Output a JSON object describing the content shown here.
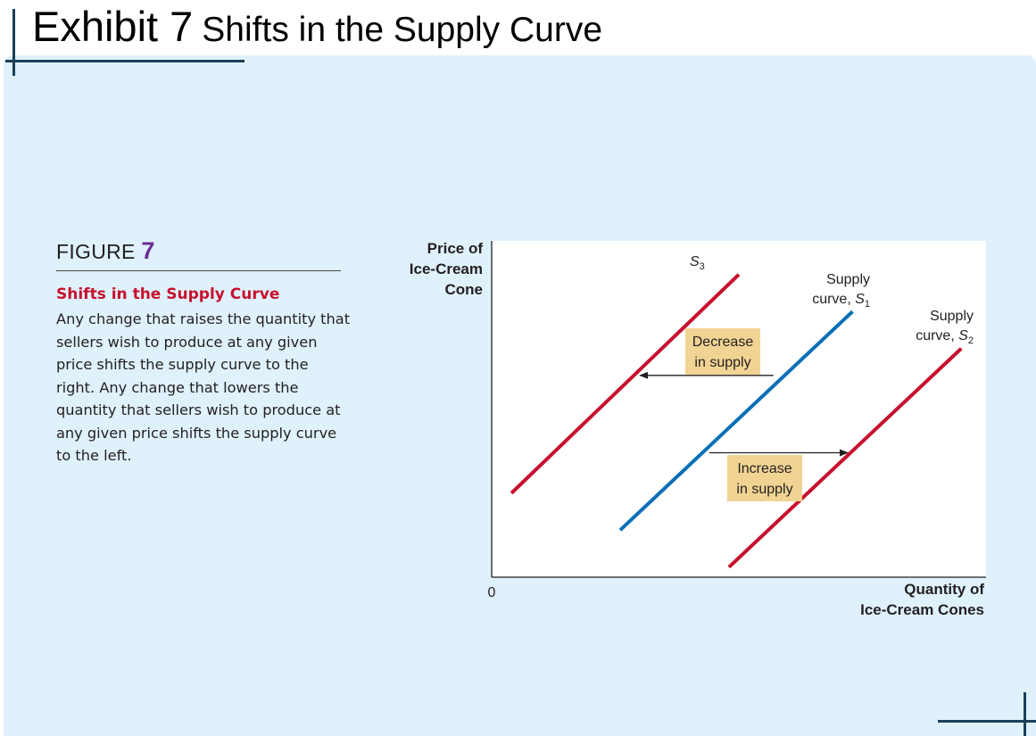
{
  "header": {
    "exhibit": "Exhibit 7",
    "title": "Shifts in the Supply Curve"
  },
  "figure": {
    "label_word": "FIGURE",
    "label_number": "7",
    "caption_title": "Shifts in the Supply Curve",
    "caption_body": "Any change that raises the quantity that sellers wish to produce at any given price shifts the supply curve to the right. Any change that lowers the quantity that sellers wish to produce at any given price shifts the supply curve to the left."
  },
  "colors": {
    "panel": "#dff1fb",
    "curve_red": "#c8102e",
    "curve_blue": "#0a6fb7",
    "box_fill": "#f1d493",
    "accent_purple": "#6b2c91"
  },
  "chart_data": {
    "type": "line",
    "ylabel": [
      "Price of",
      "Ice-Cream",
      "Cone"
    ],
    "xlabel": [
      "Quantity of",
      "Ice-Cream Cones"
    ],
    "origin_label": "0",
    "grid": false,
    "xlim": [
      0,
      100
    ],
    "ylim": [
      0,
      100
    ],
    "series": [
      {
        "key": "s3",
        "label_lines": [
          "Supply curve, S",
          "3"
        ],
        "color": "#c8102e",
        "x": [
          4,
          50
        ],
        "y": [
          25,
          90
        ]
      },
      {
        "key": "s1",
        "label_lines": [
          "Supply",
          "curve, S",
          "1"
        ],
        "color": "#0a6fb7",
        "x": [
          26,
          73
        ],
        "y": [
          14,
          79
        ]
      },
      {
        "key": "s2",
        "label_lines": [
          "Supply",
          "curve, S",
          "2"
        ],
        "color": "#c8102e",
        "x": [
          48,
          95
        ],
        "y": [
          3,
          68
        ]
      }
    ],
    "annotations": [
      {
        "key": "decrease",
        "lines": [
          "Decrease",
          "in supply"
        ],
        "arrow": {
          "from_x": 57,
          "to_x": 30,
          "y": 60
        }
      },
      {
        "key": "increase",
        "lines": [
          "Increase",
          "in supply"
        ],
        "arrow": {
          "from_x": 44,
          "to_x": 72,
          "y": 37
        }
      }
    ]
  }
}
